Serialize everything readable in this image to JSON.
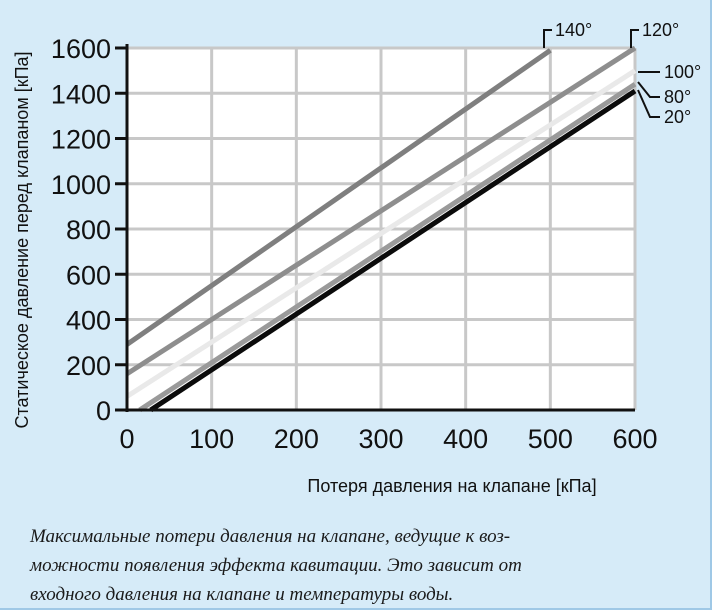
{
  "chart_data": {
    "type": "line",
    "xlabel": "Потеря давления на клапане [кПа]",
    "ylabel": "Статическое давление перед клапаном [кПа]",
    "xlim": [
      0,
      600
    ],
    "ylim": [
      0,
      1600
    ],
    "x_ticks": [
      "0",
      "100",
      "200",
      "300",
      "400",
      "500",
      "600"
    ],
    "y_ticks": [
      "0",
      "200",
      "400",
      "600",
      "800",
      "1000",
      "1200",
      "1400",
      "1600"
    ],
    "grid": true,
    "series": [
      {
        "name": "140°",
        "color": "#7f7f7f",
        "x": [
          0,
          500
        ],
        "y": [
          290,
          1590
        ]
      },
      {
        "name": "120°",
        "color": "#8e8e8e",
        "x": [
          0,
          600
        ],
        "y": [
          160,
          1600
        ]
      },
      {
        "name": "100°",
        "color": "#e9e9e9",
        "x": [
          0,
          600
        ],
        "y": [
          60,
          1500
        ]
      },
      {
        "name": "80°",
        "color": "#9a9a9a",
        "x": [
          15,
          600
        ],
        "y": [
          0,
          1440
        ]
      },
      {
        "name": "20°",
        "color": "#0b0b0b",
        "x": [
          28,
          600
        ],
        "y": [
          0,
          1410
        ]
      }
    ]
  },
  "caption_lines": [
    "Максимальные потери давления на клапане, ведущие к воз-",
    "можности появления эффекта кавитации. Это зависит от",
    "входного давления на клапане и температуры воды."
  ]
}
